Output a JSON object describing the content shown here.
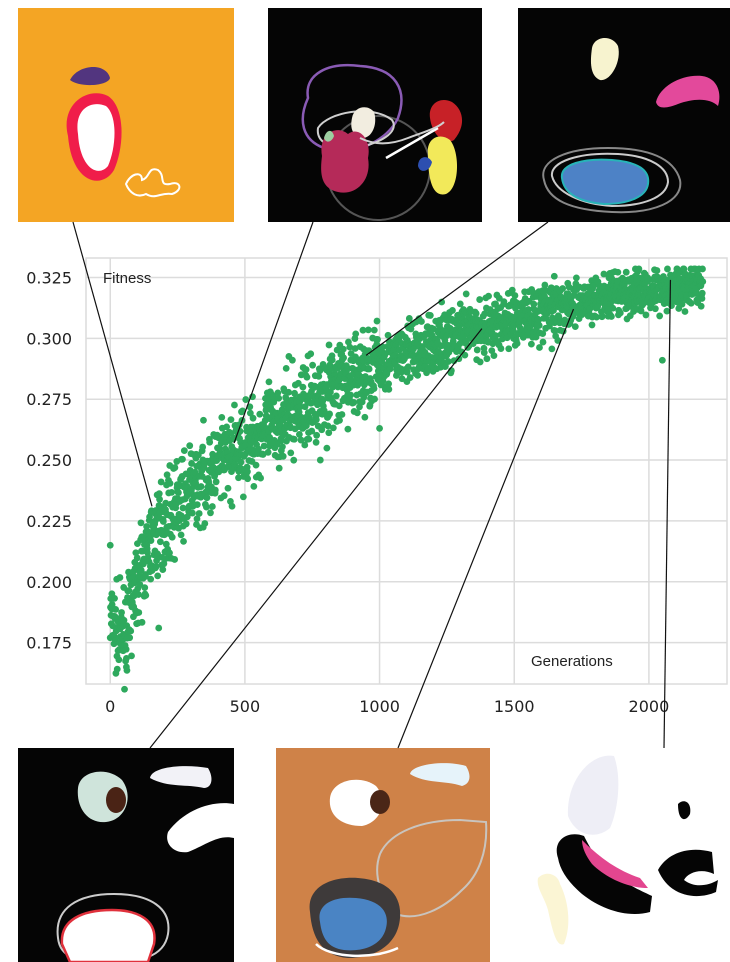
{
  "colors": {
    "points": "#2ea95d",
    "grid": "#dcdcdc",
    "thumb_orange": "#f4a524",
    "thumb_black": "#050505",
    "thumb_brown": "#cf8248",
    "thumb_white": "#ffffff"
  },
  "chart_data": {
    "type": "scatter",
    "title": "",
    "xlabel": "Generations",
    "ylabel": "Fitness",
    "xlim": [
      -90,
      2290
    ],
    "ylim": [
      0.158,
      0.333
    ],
    "xticks": [
      "0",
      "500",
      "1000",
      "1500",
      "2000"
    ],
    "xtick_values": [
      0,
      500,
      1000,
      1500,
      2000
    ],
    "yticks": [
      "0.175",
      "0.200",
      "0.225",
      "0.250",
      "0.275",
      "0.300",
      "0.325"
    ],
    "ytick_values": [
      0.175,
      0.2,
      0.225,
      0.25,
      0.275,
      0.3,
      0.325
    ],
    "grid": true,
    "legend": "none",
    "trend": {
      "x": [
        0,
        30,
        60,
        100,
        150,
        200,
        300,
        400,
        500,
        600,
        700,
        800,
        900,
        1000,
        1100,
        1200,
        1300,
        1400,
        1500,
        1600,
        1700,
        1800,
        1900,
        2000,
        2100,
        2200
      ],
      "y": [
        0.185,
        0.178,
        0.18,
        0.2,
        0.215,
        0.225,
        0.238,
        0.248,
        0.256,
        0.264,
        0.271,
        0.278,
        0.284,
        0.289,
        0.294,
        0.298,
        0.302,
        0.305,
        0.308,
        0.311,
        0.314,
        0.316,
        0.318,
        0.32,
        0.321,
        0.322
      ]
    },
    "point_count": 2200,
    "outliers": [
      {
        "x": 2050,
        "y": 0.291
      },
      {
        "x": 0,
        "y": 0.215
      },
      {
        "x": 60,
        "y": 0.165
      },
      {
        "x": 180,
        "y": 0.181
      },
      {
        "x": 780,
        "y": 0.25
      },
      {
        "x": 1000,
        "y": 0.263
      }
    ],
    "annotated_samples": [
      {
        "x": 155,
        "y": 0.231
      },
      {
        "x": 460,
        "y": 0.257
      },
      {
        "x": 950,
        "y": 0.293
      },
      {
        "x": 1380,
        "y": 0.304
      },
      {
        "x": 1720,
        "y": 0.312
      },
      {
        "x": 2080,
        "y": 0.324
      }
    ]
  }
}
